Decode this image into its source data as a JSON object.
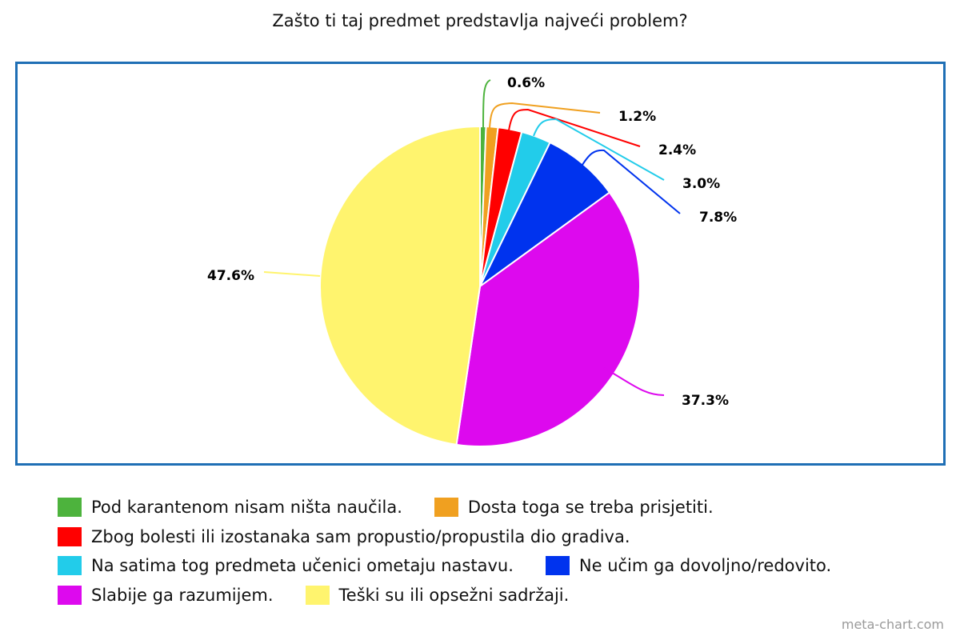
{
  "chart_data": {
    "type": "pie",
    "title": "Zašto ti taj predmet predstavlja najveći problem?",
    "slices": [
      {
        "name": "Pod karantenom nisam ništa naučila.",
        "value": 0.6,
        "label": "0.6%",
        "color": "#4db33d"
      },
      {
        "name": "Dosta toga se treba prisjetiti.",
        "value": 1.2,
        "label": "1.2%",
        "color": "#f0a020"
      },
      {
        "name": "Zbog bolesti ili izostanaka sam propustio/propustila dio gradiva.",
        "value": 2.4,
        "label": "2.4%",
        "color": "#ff0000"
      },
      {
        "name": "Na satima tog predmeta učenici ometaju nastavu.",
        "value": 3.0,
        "label": "3.0%",
        "color": "#22ccea"
      },
      {
        "name": "Ne učim ga dovoljno/redovito.",
        "value": 7.8,
        "label": "7.8%",
        "color": "#0033ee"
      },
      {
        "name": "Slabije ga razumijem.",
        "value": 37.3,
        "label": "37.3%",
        "color": "#dd09ee"
      },
      {
        "name": "Teški su ili opsežni sadržaji.",
        "value": 47.6,
        "label": "47.6%",
        "color": "#fff46e"
      }
    ],
    "legend_position": "bottom",
    "legend_rows": [
      [
        0,
        1
      ],
      [
        2
      ],
      [
        3,
        4
      ],
      [
        5,
        6
      ]
    ]
  },
  "frame_color": "#1f6fb5",
  "watermark": "meta-chart.com"
}
